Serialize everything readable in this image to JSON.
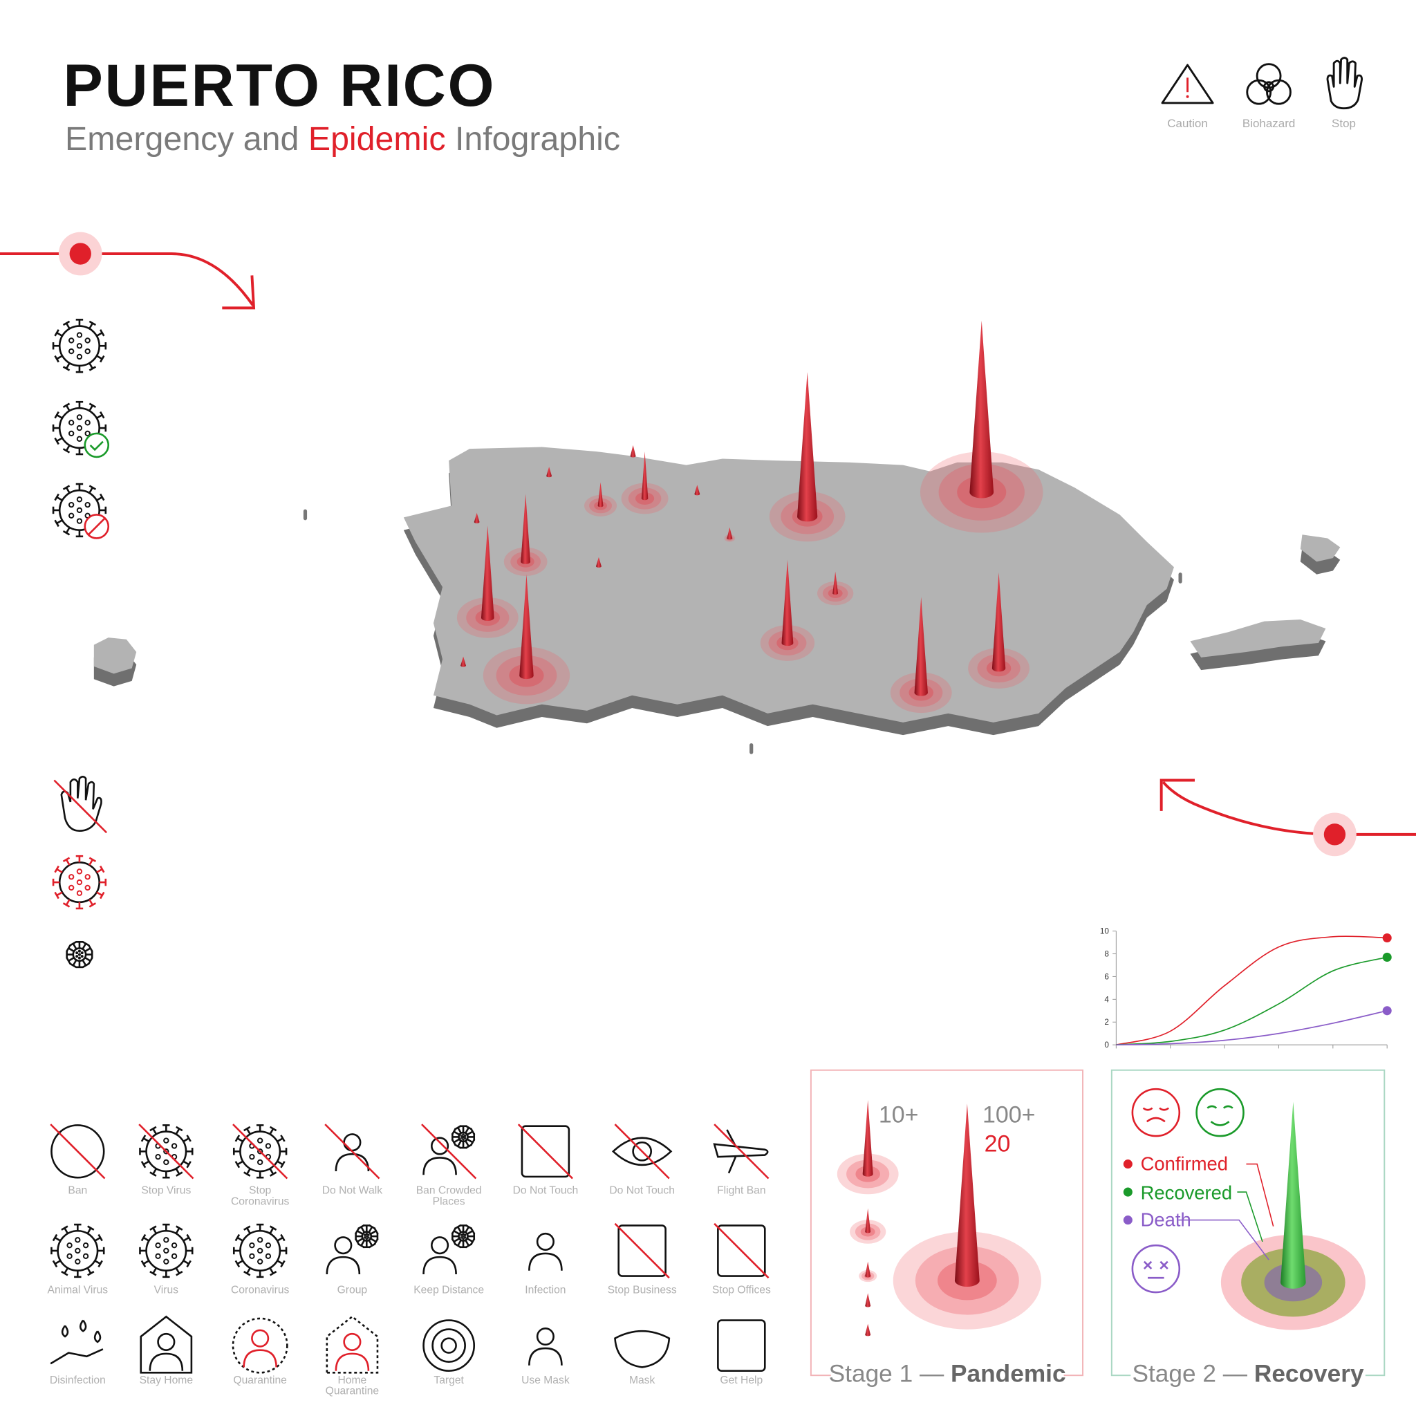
{
  "header": {
    "title": "PUERTO RICO",
    "subtitle": [
      "Emergency and ",
      "Epidemic",
      " Infographic"
    ]
  },
  "top_icons": [
    "Caution",
    "Biohazard",
    "Stop"
  ],
  "chart_data": {
    "type": "line",
    "categories": [
      null,
      null,
      null,
      null,
      null,
      null
    ],
    "series": [
      {
        "color": "#e0202a",
        "values": [
          0,
          1.2,
          5.2,
          8.6,
          9.5,
          9.4
        ]
      },
      {
        "color": "#1a9a2a",
        "values": [
          0,
          0.3,
          1.3,
          3.6,
          6.5,
          7.7
        ]
      },
      {
        "color": "#8a5cc8",
        "values": [
          0,
          0.1,
          0.4,
          1,
          1.9,
          3
        ]
      }
    ],
    "ylim": [
      0,
      10
    ],
    "yticks": [
      0,
      2,
      4,
      6,
      8,
      10
    ]
  },
  "stage1": {
    "small_label": "10+",
    "large_label": "100+",
    "large_value": 20,
    "caption": [
      "Stage 1 — ",
      "Pandemic"
    ]
  },
  "stage2": {
    "legend": [
      "Confirmed",
      "Recovered",
      "Death"
    ],
    "caption": [
      "Stage 2 — ",
      "Recovery"
    ]
  },
  "icons": [
    [
      "Ban"
    ],
    [
      "Stop Virus"
    ],
    [
      "Stop",
      "Coronavirus"
    ],
    [
      "Do Not Walk"
    ],
    [
      "Ban Crowded",
      "Places"
    ],
    [
      "Do Not Touch"
    ],
    [
      "Do Not Touch"
    ],
    [
      "Flight Ban"
    ],
    [
      "Animal Virus"
    ],
    [
      "Virus"
    ],
    [
      "Coronavirus"
    ],
    [
      "Group"
    ],
    [
      "Keep Distance"
    ],
    [
      "Infection"
    ],
    [
      "Stop Business"
    ],
    [
      "Stop Offices"
    ],
    [
      "Disinfection"
    ],
    [
      "Stay Home"
    ],
    [
      "Quarantine"
    ],
    [
      "Home",
      "Quarantine"
    ],
    [
      "Target"
    ],
    [
      "Use Mask"
    ],
    [
      "Mask"
    ],
    [
      "Get Help"
    ]
  ]
}
